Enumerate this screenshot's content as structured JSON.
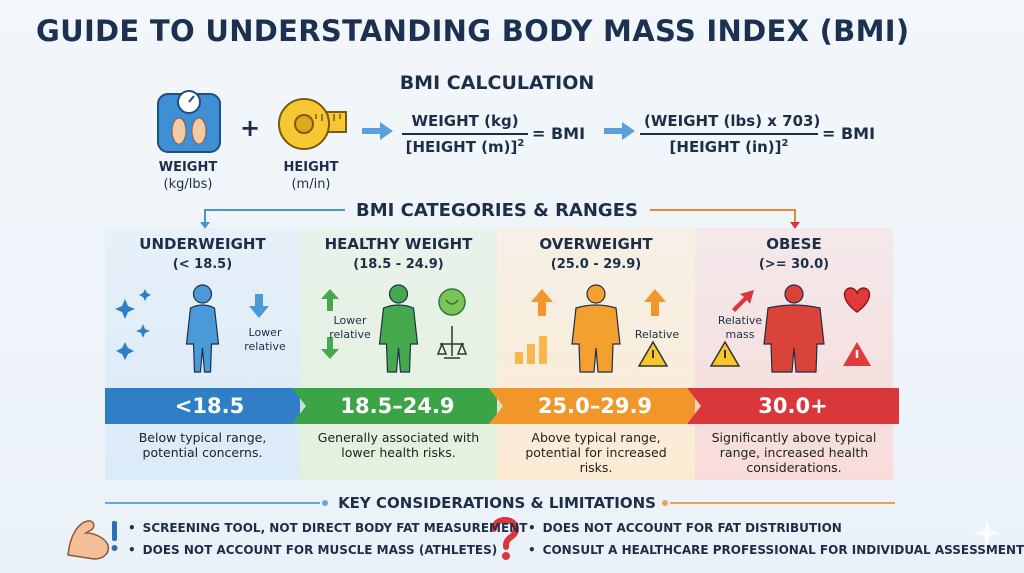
{
  "title": "GUIDE TO UNDERSTANDING BODY MASS INDEX (BMI)",
  "calculation": {
    "heading": "BMI CALCULATION",
    "weight": {
      "label": "WEIGHT",
      "units": "(kg/lbs)"
    },
    "height": {
      "label": "HEIGHT",
      "units": "(m/in)"
    },
    "metric": {
      "numerator": "WEIGHT (kg)",
      "denominator": "[HEIGHT (m)]",
      "exponent": "2",
      "result": "= BMI"
    },
    "imperial": {
      "numerator": "(WEIGHT (lbs) x 703)",
      "denominator": "[HEIGHT (in)]",
      "exponent": "2",
      "result": "= BMI"
    }
  },
  "categories": {
    "heading": "BMI CATEGORIES & RANGES",
    "items": [
      {
        "name": "UNDERWEIGHT",
        "range": "(< 18.5)",
        "icon_label": "Lower relative",
        "band": "<18.5",
        "description": "Below typical range, potential concerns."
      },
      {
        "name": "HEALTHY WEIGHT",
        "range": "(18.5 - 24.9)",
        "icon_label": "Lower relative",
        "band": "18.5–24.9",
        "description": "Generally associated with lower health risks."
      },
      {
        "name": "OVERWEIGHT",
        "range": "(25.0 - 29.9)",
        "icon_label": "Relative",
        "band": "25.0–29.9",
        "description": "Above typical range, potential for increased risks."
      },
      {
        "name": "OBESE",
        "range": "(>= 30.0)",
        "icon_label": "Relative mass",
        "band": "30.0+",
        "description": "Significantly above typical range, increased health considerations."
      }
    ]
  },
  "considerations": {
    "heading": "KEY CONSIDERATIONS & LIMITATIONS",
    "items": [
      "SCREENING TOOL, NOT DIRECT BODY FAT MEASUREMENT",
      "DOES NOT ACCOUNT FOR MUSCLE MASS (ATHLETES)",
      "DOES NOT ACCOUNT FOR FAT DISTRIBUTION",
      "CONSULT A HEALTHCARE PROFESSIONAL FOR INDIVIDUAL ASSESSMENT"
    ]
  }
}
